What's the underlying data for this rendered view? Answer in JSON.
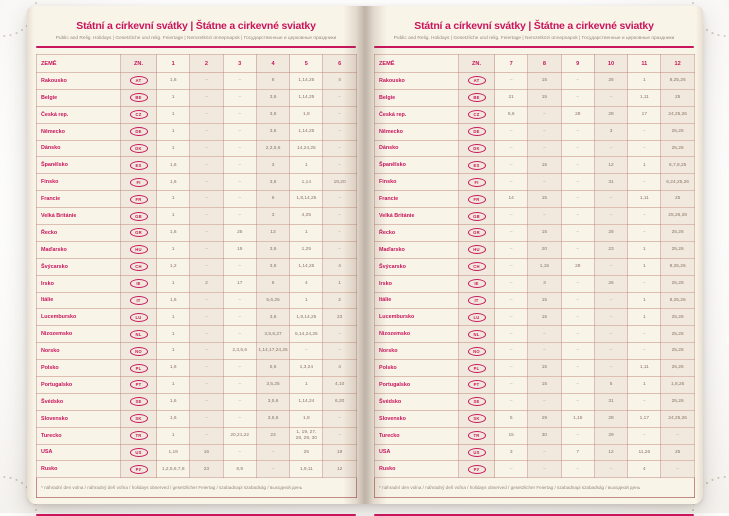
{
  "page": {
    "title": "Státní a církevní svátky | Štátne a cirkevné sviatky",
    "subtitle": "Public and Relig. Holidays | Gesetzliche und relig. Feiertage | Nemzetközi ünnepnapok | Государственные и церковные праздники",
    "footnote": "* náhradní den volna / náhradný deň voľna / holidays observed / gesetzlicher Feiertag / szabadnapi szabadság / выходной день"
  },
  "table": {
    "headers": {
      "country": "ZEMĚ",
      "code": "ZN."
    },
    "months_left": [
      "1",
      "2",
      "3",
      "4",
      "5",
      "6"
    ],
    "months_right": [
      "7",
      "8",
      "9",
      "10",
      "11",
      "12"
    ],
    "rows": [
      {
        "country": "Rakousko",
        "code": "AT",
        "months": [
          "1,6",
          "–",
          "–",
          "6",
          "1,14,25",
          "4",
          "–",
          "15",
          "–",
          "26",
          "1",
          "8,25,26"
        ]
      },
      {
        "country": "Belgie",
        "code": "BE",
        "months": [
          "1",
          "–",
          "–",
          "3,6",
          "1,14,25",
          "–",
          "21",
          "15",
          "–",
          "–",
          "1,11",
          "25"
        ]
      },
      {
        "country": "Česká rep.",
        "code": "CZ",
        "months": [
          "1",
          "–",
          "–",
          "3,6",
          "1,8",
          "–",
          "5,6",
          "–",
          "28",
          "28",
          "17",
          "24,25,26"
        ]
      },
      {
        "country": "Německo",
        "code": "DE",
        "months": [
          "1",
          "–",
          "–",
          "3,6",
          "1,14,25",
          "–",
          "–",
          "–",
          "–",
          "3",
          "–",
          "25,26"
        ]
      },
      {
        "country": "Dánsko",
        "code": "DK",
        "months": [
          "1",
          "–",
          "–",
          "2,3,5,6",
          "14,24,25",
          "–",
          "–",
          "–",
          "–",
          "–",
          "–",
          "25,26"
        ]
      },
      {
        "country": "Španělsko",
        "code": "ES",
        "months": [
          "1,6",
          "–",
          "–",
          "3",
          "1",
          "–",
          "–",
          "15",
          "–",
          "12",
          "1",
          "6,7,8,25"
        ]
      },
      {
        "country": "Finsko",
        "code": "FI",
        "months": [
          "1,6",
          "–",
          "–",
          "3,6",
          "1,14",
          "19,20",
          "–",
          "–",
          "–",
          "31",
          "–",
          "6,24,25,26"
        ]
      },
      {
        "country": "Francie",
        "code": "FR",
        "months": [
          "1",
          "–",
          "–",
          "6",
          "1,8,14,25",
          "–",
          "14",
          "15",
          "–",
          "–",
          "1,11",
          "25"
        ]
      },
      {
        "country": "Velká Británie",
        "code": "GB",
        "months": [
          "1",
          "–",
          "–",
          "3",
          "4,25",
          "–",
          "–",
          "–",
          "–",
          "–",
          "–",
          "25,26,28"
        ]
      },
      {
        "country": "Řecko",
        "code": "GR",
        "months": [
          "1,6",
          "–",
          "25",
          "13",
          "1",
          "–",
          "–",
          "15",
          "–",
          "28",
          "–",
          "25,26"
        ]
      },
      {
        "country": "Maďarsko",
        "code": "HU",
        "months": [
          "1",
          "–",
          "15",
          "3,6",
          "1,25",
          "–",
          "–",
          "20",
          "–",
          "23",
          "1",
          "25,26"
        ]
      },
      {
        "country": "Švýcarsko",
        "code": "CH",
        "months": [
          "1,2",
          "–",
          "–",
          "3,6",
          "1,14,25",
          "4",
          "–",
          "1,15",
          "28",
          "–",
          "1",
          "8,25,26"
        ]
      },
      {
        "country": "Irsko",
        "code": "IE",
        "months": [
          "1",
          "2",
          "17",
          "6",
          "4",
          "1",
          "–",
          "3",
          "–",
          "26",
          "–",
          "25,28"
        ]
      },
      {
        "country": "Itálie",
        "code": "IT",
        "months": [
          "1,6",
          "–",
          "–",
          "5,6,25",
          "1",
          "2",
          "–",
          "15",
          "–",
          "–",
          "1",
          "8,25,26"
        ]
      },
      {
        "country": "Lucembursko",
        "code": "LU",
        "months": [
          "1",
          "–",
          "–",
          "3,6",
          "1,9,14,25",
          "23",
          "–",
          "15",
          "–",
          "–",
          "1",
          "25,26"
        ]
      },
      {
        "country": "Nizozemsko",
        "code": "NL",
        "months": [
          "1",
          "–",
          "–",
          "3,5,6,27",
          "5,14,24,25",
          "–",
          "–",
          "–",
          "–",
          "–",
          "–",
          "25,26"
        ]
      },
      {
        "country": "Norsko",
        "code": "NO",
        "months": [
          "1",
          "–",
          "2,3,5,6",
          "1,14,17,24,25",
          "–",
          "–",
          "–",
          "–",
          "–",
          "–",
          "–",
          "25,26"
        ]
      },
      {
        "country": "Polsko",
        "code": "PL",
        "months": [
          "1,6",
          "–",
          "–",
          "5,6",
          "1,3,24",
          "4",
          "–",
          "15",
          "–",
          "–",
          "1,11",
          "25,26"
        ]
      },
      {
        "country": "Portugalsko",
        "code": "PT",
        "months": [
          "1",
          "–",
          "–",
          "3,5,25",
          "1",
          "4,10",
          "–",
          "15",
          "–",
          "5",
          "1",
          "1,8,25"
        ]
      },
      {
        "country": "Švédsko",
        "code": "SE",
        "months": [
          "1,6",
          "–",
          "–",
          "3,5,6",
          "1,14,24",
          "6,20",
          "–",
          "–",
          "–",
          "31",
          "–",
          "25,26"
        ]
      },
      {
        "country": "Slovensko",
        "code": "SK",
        "months": [
          "1,6",
          "–",
          "–",
          "3,5,6",
          "1,8",
          "–",
          "5",
          "29",
          "1,15",
          "28",
          "1,17",
          "24,25,26"
        ]
      },
      {
        "country": "Turecko",
        "code": "TR",
        "months": [
          "1",
          "–",
          "20,21,22",
          "23",
          "1, 19, 27,\n28, 29, 30",
          "–",
          "15",
          "30",
          "–",
          "29",
          "–",
          "–"
        ]
      },
      {
        "country": "USA",
        "code": "US",
        "months": [
          "1,19",
          "16",
          "–",
          "–",
          "25",
          "19",
          "3",
          "–",
          "7",
          "12",
          "11,26",
          "25"
        ]
      },
      {
        "country": "Rusko",
        "code": "РУ",
        "months": [
          "1,2,5,6,7,8",
          "23",
          "8,9",
          "–",
          "1,9,11",
          "12",
          "–",
          "–",
          "–",
          "–",
          "4",
          "–"
        ]
      }
    ]
  },
  "colors": {
    "accent": "#c8155c",
    "paper": "#f9f4e8",
    "band_shade": "#f1e9dd",
    "cell_text": "#8a7566",
    "subtitle_text": "#95897b"
  }
}
